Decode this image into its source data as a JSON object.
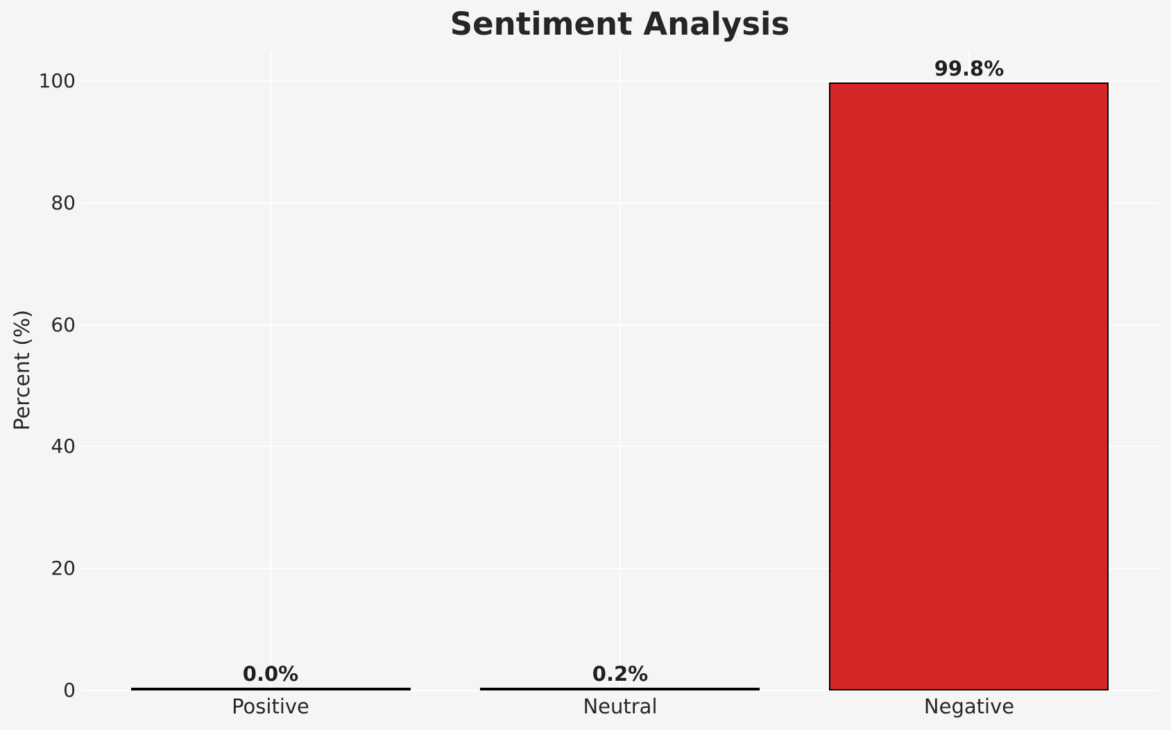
{
  "chart_data": {
    "type": "bar",
    "title": "Sentiment Analysis",
    "xlabel": "",
    "ylabel": "Percent (%)",
    "categories": [
      "Positive",
      "Neutral",
      "Negative"
    ],
    "values": [
      0.0,
      0.2,
      99.8
    ],
    "value_labels": [
      "0.0%",
      "0.2%",
      "99.8%"
    ],
    "bar_color": "#d62728",
    "bar_edge_color": "#000000",
    "bar_width_fraction": 0.8,
    "yticks": [
      0,
      20,
      40,
      60,
      80,
      100
    ],
    "ylim": [
      0,
      105
    ],
    "xlim": [
      -0.543,
      2.543
    ],
    "grid": true,
    "grid_color": "#ffffff",
    "background_color": "#f5f5f5",
    "text_color": "#262626",
    "legend": null
  }
}
